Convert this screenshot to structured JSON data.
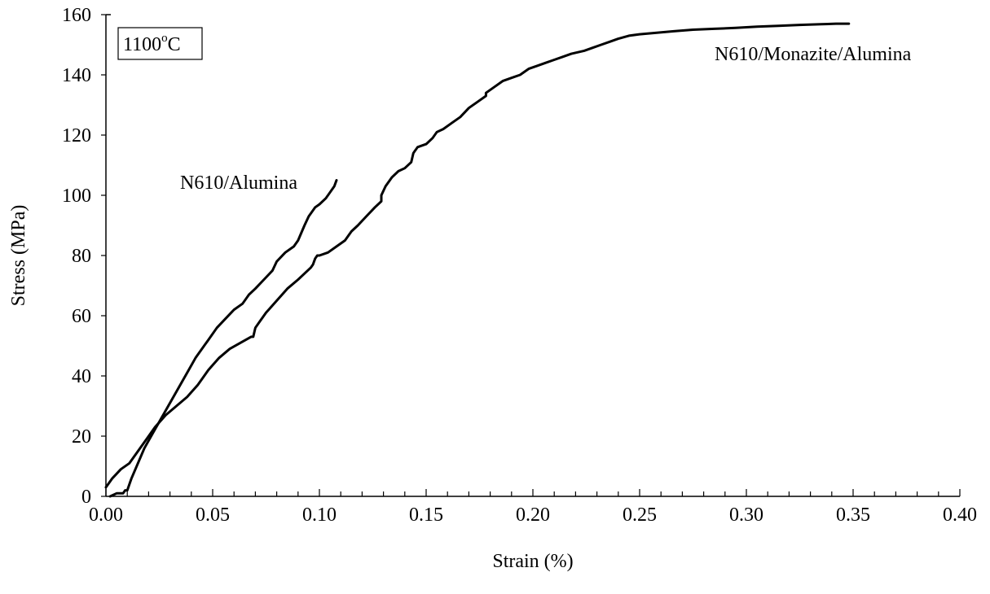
{
  "chart_data": {
    "type": "line",
    "xlabel": "Strain (%)",
    "ylabel": "Stress (MPa)",
    "xlim": [
      0,
      0.4
    ],
    "ylim": [
      0,
      160
    ],
    "x_ticks": [
      "0.00",
      "0.05",
      "0.10",
      "0.15",
      "0.20",
      "0.25",
      "0.30",
      "0.35",
      "0.40"
    ],
    "y_ticks": [
      "0",
      "20",
      "40",
      "60",
      "80",
      "100",
      "120",
      "140",
      "160"
    ],
    "grid": false,
    "legend": "none",
    "line_color": "#000000",
    "temperature_box": {
      "main": "1100",
      "sup": "o",
      "tail": "C"
    },
    "series": [
      {
        "name": "N610/Alumina",
        "x": [
          0.002,
          0.005,
          0.008,
          0.009,
          0.01,
          0.012,
          0.015,
          0.018,
          0.022,
          0.026,
          0.03,
          0.034,
          0.038,
          0.042,
          0.046,
          0.048,
          0.052,
          0.056,
          0.06,
          0.064,
          0.066,
          0.067,
          0.07,
          0.074,
          0.078,
          0.08,
          0.084,
          0.088,
          0.09,
          0.093,
          0.095,
          0.098,
          0.1,
          0.103,
          0.105,
          0.107,
          0.108
        ],
        "y": [
          0,
          1,
          1,
          2,
          2,
          6,
          11,
          16,
          21,
          26,
          31,
          36,
          41,
          46,
          50,
          52,
          56,
          59,
          62,
          64,
          66,
          67,
          69,
          72,
          75,
          78,
          81,
          83,
          85,
          90,
          93,
          96,
          97,
          99,
          101,
          103,
          105
        ]
      },
      {
        "name": "N610/Monazite/Alumina",
        "x": [
          0.0,
          0.003,
          0.007,
          0.011,
          0.015,
          0.019,
          0.023,
          0.028,
          0.033,
          0.038,
          0.043,
          0.048,
          0.053,
          0.058,
          0.063,
          0.068,
          0.069,
          0.07,
          0.072,
          0.075,
          0.08,
          0.085,
          0.09,
          0.093,
          0.096,
          0.097,
          0.098,
          0.099,
          0.1,
          0.104,
          0.108,
          0.112,
          0.115,
          0.118,
          0.122,
          0.126,
          0.129,
          0.129,
          0.131,
          0.134,
          0.137,
          0.14,
          0.143,
          0.144,
          0.146,
          0.15,
          0.153,
          0.155,
          0.158,
          0.162,
          0.166,
          0.17,
          0.174,
          0.178,
          0.178,
          0.182,
          0.186,
          0.19,
          0.194,
          0.198,
          0.202,
          0.206,
          0.21,
          0.214,
          0.218,
          0.224,
          0.228,
          0.232,
          0.236,
          0.24,
          0.245,
          0.25,
          0.258,
          0.266,
          0.275,
          0.285,
          0.295,
          0.305,
          0.315,
          0.325,
          0.335,
          0.342,
          0.348
        ],
        "y": [
          3,
          6,
          9,
          11,
          15,
          19,
          23,
          27,
          30,
          33,
          37,
          42,
          46,
          49,
          51,
          53,
          53,
          56,
          58,
          61,
          65,
          69,
          72,
          74,
          76,
          77,
          79,
          80,
          80,
          81,
          83,
          85,
          88,
          90,
          93,
          96,
          98,
          100,
          103,
          106,
          108,
          109,
          111,
          114,
          116,
          117,
          119,
          121,
          122,
          124,
          126,
          129,
          131,
          133,
          134,
          136,
          138,
          139,
          140,
          142,
          143,
          144,
          145,
          146,
          147,
          148,
          149,
          150,
          151,
          152,
          153,
          153.5,
          154,
          154.5,
          155,
          155.3,
          155.6,
          156,
          156.3,
          156.6,
          156.8,
          157,
          157
        ]
      }
    ],
    "annotations": [
      {
        "text": "N610/Alumina"
      },
      {
        "text": "N610/Monazite/Alumina"
      }
    ]
  }
}
